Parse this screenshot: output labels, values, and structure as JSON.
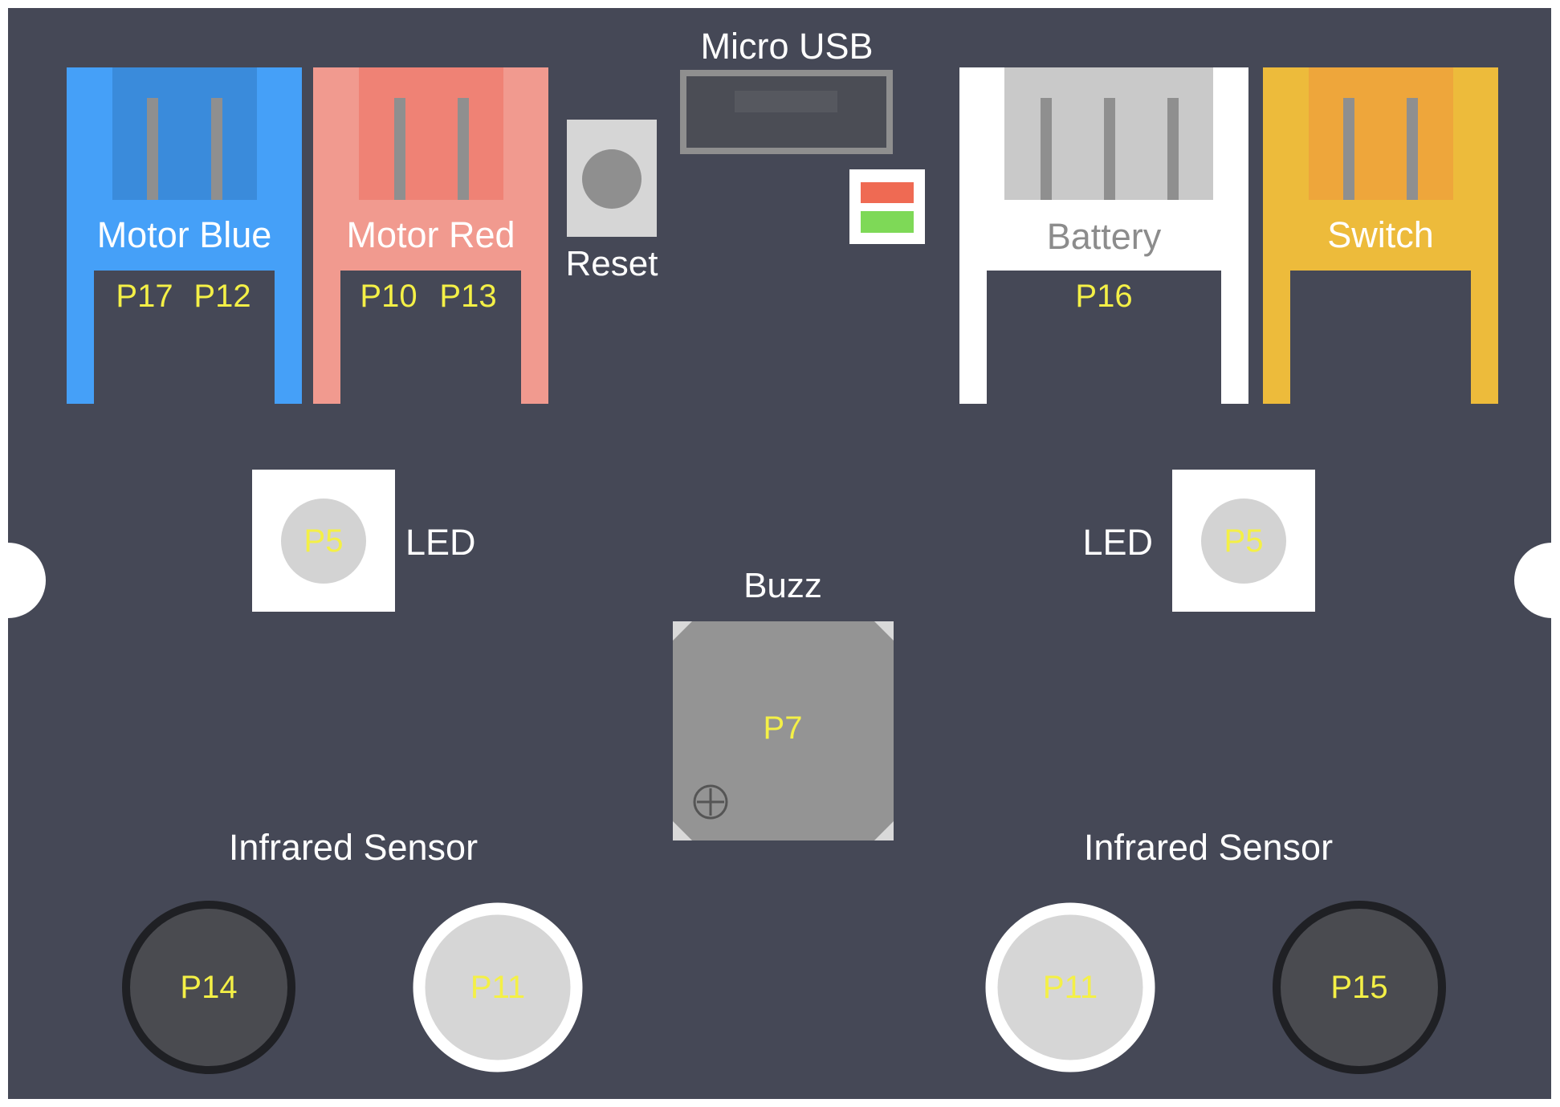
{
  "colors": {
    "board": "#454856",
    "pin_label": "#F4F046",
    "white_text": "#FFFFFF",
    "gray_text": "#8C8C8C",
    "motor_blue": "#45A0F8",
    "motor_blue_inner": "#3A8BDB",
    "motor_red": "#F19A8F",
    "motor_red_inner": "#EF8275",
    "battery": "#FFFFFF",
    "battery_inner": "#C9C9C9",
    "switch": "#EDBB3B",
    "switch_inner": "#EEA63B",
    "pin": "#8F8F8F",
    "led_bg": "#FFFFFF",
    "led_dot": "#D3D3D3",
    "buzzer": "#949494",
    "ir_light": "#D6D6D6",
    "ir_dark": "#4A4B50",
    "ir_dark_ring": "#1F2024",
    "status_red": "#EF6A53",
    "status_green": "#7ED957"
  },
  "connectors": {
    "motor_blue": {
      "label": "Motor Blue",
      "pins": [
        "P17",
        "P12"
      ]
    },
    "motor_red": {
      "label": "Motor Red",
      "pins": [
        "P10",
        "P13"
      ]
    },
    "battery": {
      "label": "Battery",
      "pins": [
        "P16"
      ]
    },
    "switch": {
      "label": "Switch",
      "pins": []
    }
  },
  "reset": {
    "label": "Reset",
    "icon": "button-icon"
  },
  "usb": {
    "label": "Micro USB"
  },
  "status_led": {
    "icon": "status-led-icon"
  },
  "leds": {
    "left": {
      "label": "LED",
      "pin": "P5"
    },
    "right": {
      "label": "LED",
      "pin": "P5"
    }
  },
  "buzzer": {
    "label": "Buzz",
    "pin": "P7",
    "polarity_icon": "plus-circle-icon"
  },
  "infrared": {
    "left": {
      "label": "Infrared Sensor",
      "sensors": [
        "P14",
        "P11"
      ]
    },
    "right": {
      "label": "Infrared Sensor",
      "sensors": [
        "P11",
        "P15"
      ]
    }
  }
}
